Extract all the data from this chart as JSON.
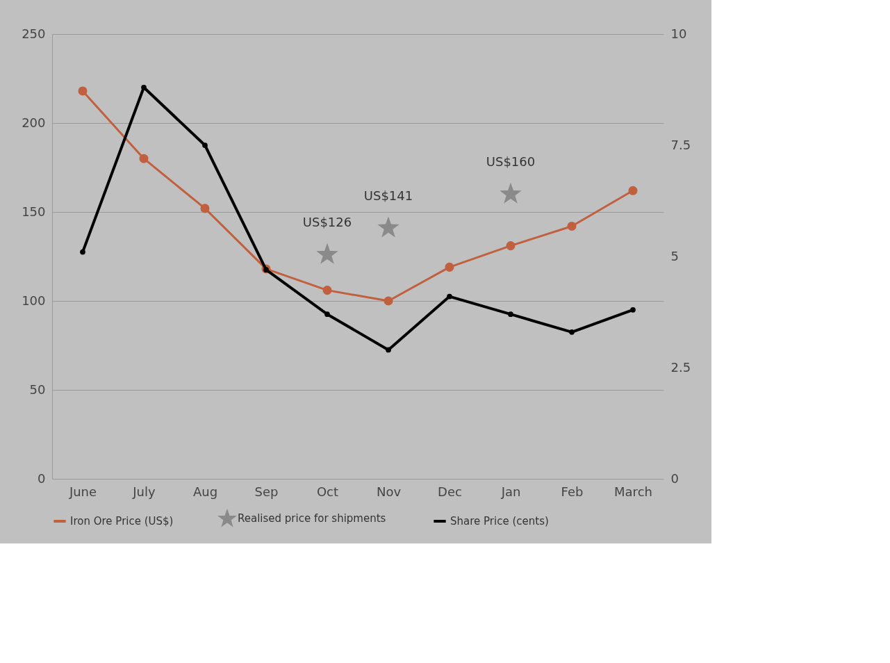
{
  "chart_data": {
    "type": "line",
    "categories": [
      "June",
      "July",
      "Aug",
      "Sep",
      "Oct",
      "Nov",
      "Dec",
      "Jan",
      "Feb",
      "March"
    ],
    "series": [
      {
        "name": "Iron Ore Price (US$)",
        "color": "#c0603f",
        "marker": "circle",
        "values": [
          218,
          180,
          152,
          118,
          106,
          100,
          119,
          131,
          142,
          162
        ]
      },
      {
        "name": "Realised price for shipments",
        "color": "#8a8a8a",
        "type": "scatter",
        "marker": "star",
        "values": [
          null,
          null,
          null,
          null,
          126,
          141,
          null,
          160,
          null,
          null
        ],
        "value_labels": [
          null,
          null,
          null,
          null,
          "US$126",
          "US$141",
          null,
          "US$160",
          null,
          null
        ]
      },
      {
        "name": "Share Price (cents)",
        "color": "#000000",
        "marker": "circle",
        "axis": "y2",
        "values": [
          5.1,
          8.8,
          7.5,
          4.7,
          3.7,
          2.9,
          4.1,
          3.7,
          3.3,
          3.8
        ]
      }
    ],
    "ylim": [
      0,
      250
    ],
    "yticks": [
      0,
      50,
      100,
      150,
      200,
      250
    ],
    "y2lim": [
      0,
      10
    ],
    "y2ticks": [
      0,
      2.5,
      5,
      7.5,
      10
    ],
    "grid": "y",
    "legend": "bottom"
  }
}
